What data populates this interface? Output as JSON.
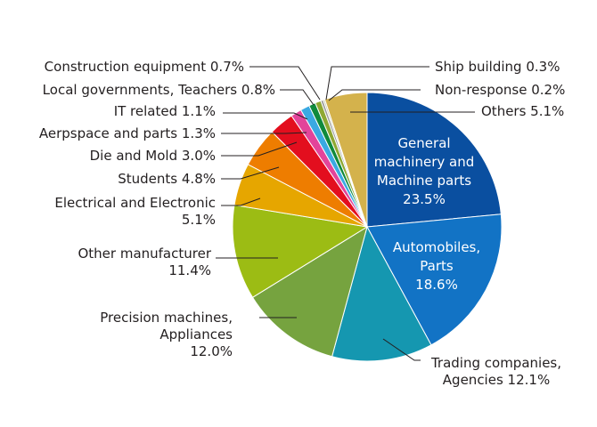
{
  "chart_data": {
    "type": "pie",
    "start_angle_deg": 0,
    "direction": "clockwise",
    "slices": [
      {
        "label_lines": [
          "General",
          "machinery and",
          "Machine parts"
        ],
        "value_text": "23.5%",
        "value": 23.5,
        "color": "#0a4fa0",
        "label_inside": true
      },
      {
        "label_lines": [
          "Automobiles,",
          "Parts"
        ],
        "value_text": "18.6%",
        "value": 18.6,
        "color": "#1273c5",
        "label_inside": true
      },
      {
        "label_lines": [
          "Trading companies,",
          "Agencies"
        ],
        "value_text": "12.1%",
        "value": 12.1,
        "color": "#1597b0",
        "label_inside": false
      },
      {
        "label_lines": [
          "Precision machines,",
          "Appliances"
        ],
        "value_text": "12.0%",
        "value": 12.0,
        "color": "#76a33f",
        "label_inside": false
      },
      {
        "label_lines": [
          "Other manufacturer"
        ],
        "value_text": "11.4%",
        "value": 11.4,
        "color": "#9cbc14",
        "label_inside": false
      },
      {
        "label_lines": [
          "Electrical and Electronic"
        ],
        "value_text": "5.1%",
        "value": 5.1,
        "color": "#e6a600",
        "label_inside": false
      },
      {
        "label_lines": [
          "Students"
        ],
        "value_text": "4.8%",
        "value": 4.8,
        "color": "#ee7d00",
        "label_inside": false
      },
      {
        "label_lines": [
          "Die and Mold"
        ],
        "value_text": "3.0%",
        "value": 3.0,
        "color": "#e30e1e",
        "label_inside": false
      },
      {
        "label_lines": [
          "Aerpspace and parts"
        ],
        "value_text": "1.3%",
        "value": 1.3,
        "color": "#e3449a",
        "label_inside": false
      },
      {
        "label_lines": [
          "IT related"
        ],
        "value_text": "1.1%",
        "value": 1.1,
        "color": "#3aa9e2",
        "label_inside": false
      },
      {
        "label_lines": [
          "Local governments, Teachers"
        ],
        "value_text": "0.8%",
        "value": 0.8,
        "color": "#0f8a3c",
        "label_inside": false
      },
      {
        "label_lines": [
          "Construction equipment"
        ],
        "value_text": "0.7%",
        "value": 0.7,
        "color": "#8fa832",
        "label_inside": false
      },
      {
        "label_lines": [
          "Ship building"
        ],
        "value_text": "0.3%",
        "value": 0.3,
        "color": "#9b9b9b",
        "label_inside": false
      },
      {
        "label_lines": [
          "Non-response"
        ],
        "value_text": "0.2%",
        "value": 0.2,
        "color": "#c9c9a8",
        "label_inside": false
      },
      {
        "label_lines": [
          "Others"
        ],
        "value_text": "5.1%",
        "value": 5.1,
        "color": "#d4b24c",
        "label_inside": false
      }
    ]
  }
}
